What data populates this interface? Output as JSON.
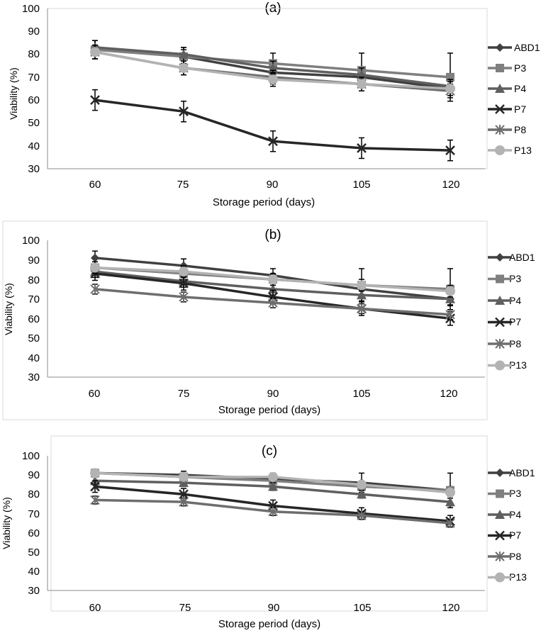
{
  "charts": [
    {
      "panel": "(a)",
      "ylabel": "Viability (%)",
      "xlabel": "Storage period (days)",
      "yticks": [
        "30",
        "40",
        "50",
        "60",
        "70",
        "80",
        "90",
        "100"
      ],
      "xticks": [
        "60",
        "75",
        "90",
        "105",
        "120"
      ]
    },
    {
      "panel": "(b)",
      "ylabel": "Viability (%)",
      "xlabel": "Storage period (days)",
      "yticks": [
        "30",
        "40",
        "50",
        "60",
        "70",
        "80",
        "90",
        "100"
      ],
      "xticks": [
        "60",
        "75",
        "90",
        "105",
        "120"
      ]
    },
    {
      "panel": "(c)",
      "ylabel": "Viability (%)",
      "xlabel": "Storage period (days)",
      "yticks": [
        "30",
        "40",
        "50",
        "60",
        "70",
        "80",
        "90",
        "100"
      ],
      "xticks": [
        "60",
        "75",
        "90",
        "105",
        "120"
      ]
    }
  ],
  "legend_names": [
    "ABD1",
    "P3",
    "P4",
    "P7",
    "P8",
    "P13"
  ],
  "chart_data": [
    {
      "type": "line",
      "title": "(a)",
      "xlabel": "Storage period (days)",
      "ylabel": "Viability (%)",
      "x": [
        60,
        75,
        90,
        105,
        120
      ],
      "ylim": [
        30,
        100
      ],
      "legend": "right",
      "series": [
        {
          "name": "ABD1",
          "marker": "diamond",
          "color": "#404040",
          "values": [
            83,
            79,
            72,
            70,
            65
          ],
          "error": [
            3,
            3,
            4,
            3,
            3
          ]
        },
        {
          "name": "P3",
          "marker": "square",
          "color": "#7f7f7f",
          "values": [
            82,
            79,
            76,
            73,
            70
          ],
          "error": [
            4,
            4,
            4.5,
            7.5,
            10.5
          ]
        },
        {
          "name": "P4",
          "marker": "triangle",
          "color": "#5f5f5f",
          "values": [
            83,
            80,
            74,
            71,
            66
          ],
          "error": [
            3,
            3,
            3,
            3,
            3
          ]
        },
        {
          "name": "P7",
          "marker": "x",
          "color": "#262626",
          "values": [
            60,
            55,
            42,
            39,
            38
          ],
          "error": [
            4.5,
            4.5,
            4.5,
            4.5,
            4.5
          ]
        },
        {
          "name": "P8",
          "marker": "star",
          "color": "#6e6e6e",
          "values": [
            81,
            74,
            70,
            67,
            64
          ],
          "error": [
            3,
            3,
            3,
            3,
            3
          ]
        },
        {
          "name": "P13",
          "marker": "circle",
          "color": "#b3b3b3",
          "values": [
            81,
            74,
            69,
            67,
            65
          ],
          "error": [
            3,
            3,
            3,
            3,
            3
          ]
        }
      ]
    },
    {
      "type": "line",
      "title": "(b)",
      "xlabel": "Storage period (days)",
      "ylabel": "Viability (%)",
      "x": [
        60,
        75,
        90,
        105,
        120
      ],
      "ylim": [
        30,
        100
      ],
      "legend": "right",
      "series": [
        {
          "name": "ABD1",
          "marker": "diamond",
          "color": "#404040",
          "values": [
            91,
            87,
            82,
            75,
            70
          ],
          "error": [
            3.5,
            3.5,
            3.5,
            3.5,
            3.5
          ]
        },
        {
          "name": "P3",
          "marker": "square",
          "color": "#7f7f7f",
          "values": [
            86,
            83,
            80,
            77,
            75
          ],
          "error": [
            3,
            3,
            3,
            8.5,
            10.5
          ]
        },
        {
          "name": "P4",
          "marker": "triangle",
          "color": "#5f5f5f",
          "values": [
            84,
            79,
            75,
            72,
            70
          ],
          "error": [
            3,
            3,
            3,
            3,
            3
          ]
        },
        {
          "name": "P7",
          "marker": "x",
          "color": "#262626",
          "values": [
            83,
            78,
            71,
            65,
            60
          ],
          "error": [
            3.5,
            3.5,
            3.5,
            3.5,
            3.5
          ]
        },
        {
          "name": "P8",
          "marker": "star",
          "color": "#6e6e6e",
          "values": [
            75,
            71,
            68,
            65,
            62
          ],
          "error": [
            2.5,
            2.5,
            2.5,
            2.5,
            2.5
          ]
        },
        {
          "name": "P13",
          "marker": "circle",
          "color": "#b3b3b3",
          "values": [
            86,
            84,
            80,
            77,
            74
          ],
          "error": [
            3,
            3,
            3,
            3,
            3
          ]
        }
      ]
    },
    {
      "type": "line",
      "title": "(c)",
      "xlabel": "Storage period (days)",
      "ylabel": "Viability (%)",
      "x": [
        60,
        75,
        90,
        105,
        120
      ],
      "ylim": [
        30,
        100
      ],
      "legend": "right",
      "series": [
        {
          "name": "ABD1",
          "marker": "diamond",
          "color": "#404040",
          "values": [
            91,
            90,
            88,
            86,
            82
          ],
          "error": [
            2,
            2,
            2,
            5,
            9
          ]
        },
        {
          "name": "P3",
          "marker": "square",
          "color": "#7f7f7f",
          "values": [
            91,
            89,
            87,
            84,
            82
          ],
          "error": [
            2,
            2,
            2,
            2,
            2
          ]
        },
        {
          "name": "P4",
          "marker": "triangle",
          "color": "#5f5f5f",
          "values": [
            87,
            86,
            84,
            80,
            76
          ],
          "error": [
            2,
            2,
            2,
            2,
            2
          ]
        },
        {
          "name": "P7",
          "marker": "x",
          "color": "#262626",
          "values": [
            84,
            80,
            74,
            70,
            66
          ],
          "error": [
            3,
            3,
            3,
            3,
            3
          ]
        },
        {
          "name": "P8",
          "marker": "star",
          "color": "#6e6e6e",
          "values": [
            77,
            76,
            71,
            69,
            65
          ],
          "error": [
            2,
            2,
            2,
            2,
            2
          ]
        },
        {
          "name": "P13",
          "marker": "circle",
          "color": "#b3b3b3",
          "values": [
            91,
            89,
            89,
            85,
            81
          ],
          "error": [
            2,
            2,
            2,
            2,
            2
          ]
        }
      ]
    }
  ]
}
